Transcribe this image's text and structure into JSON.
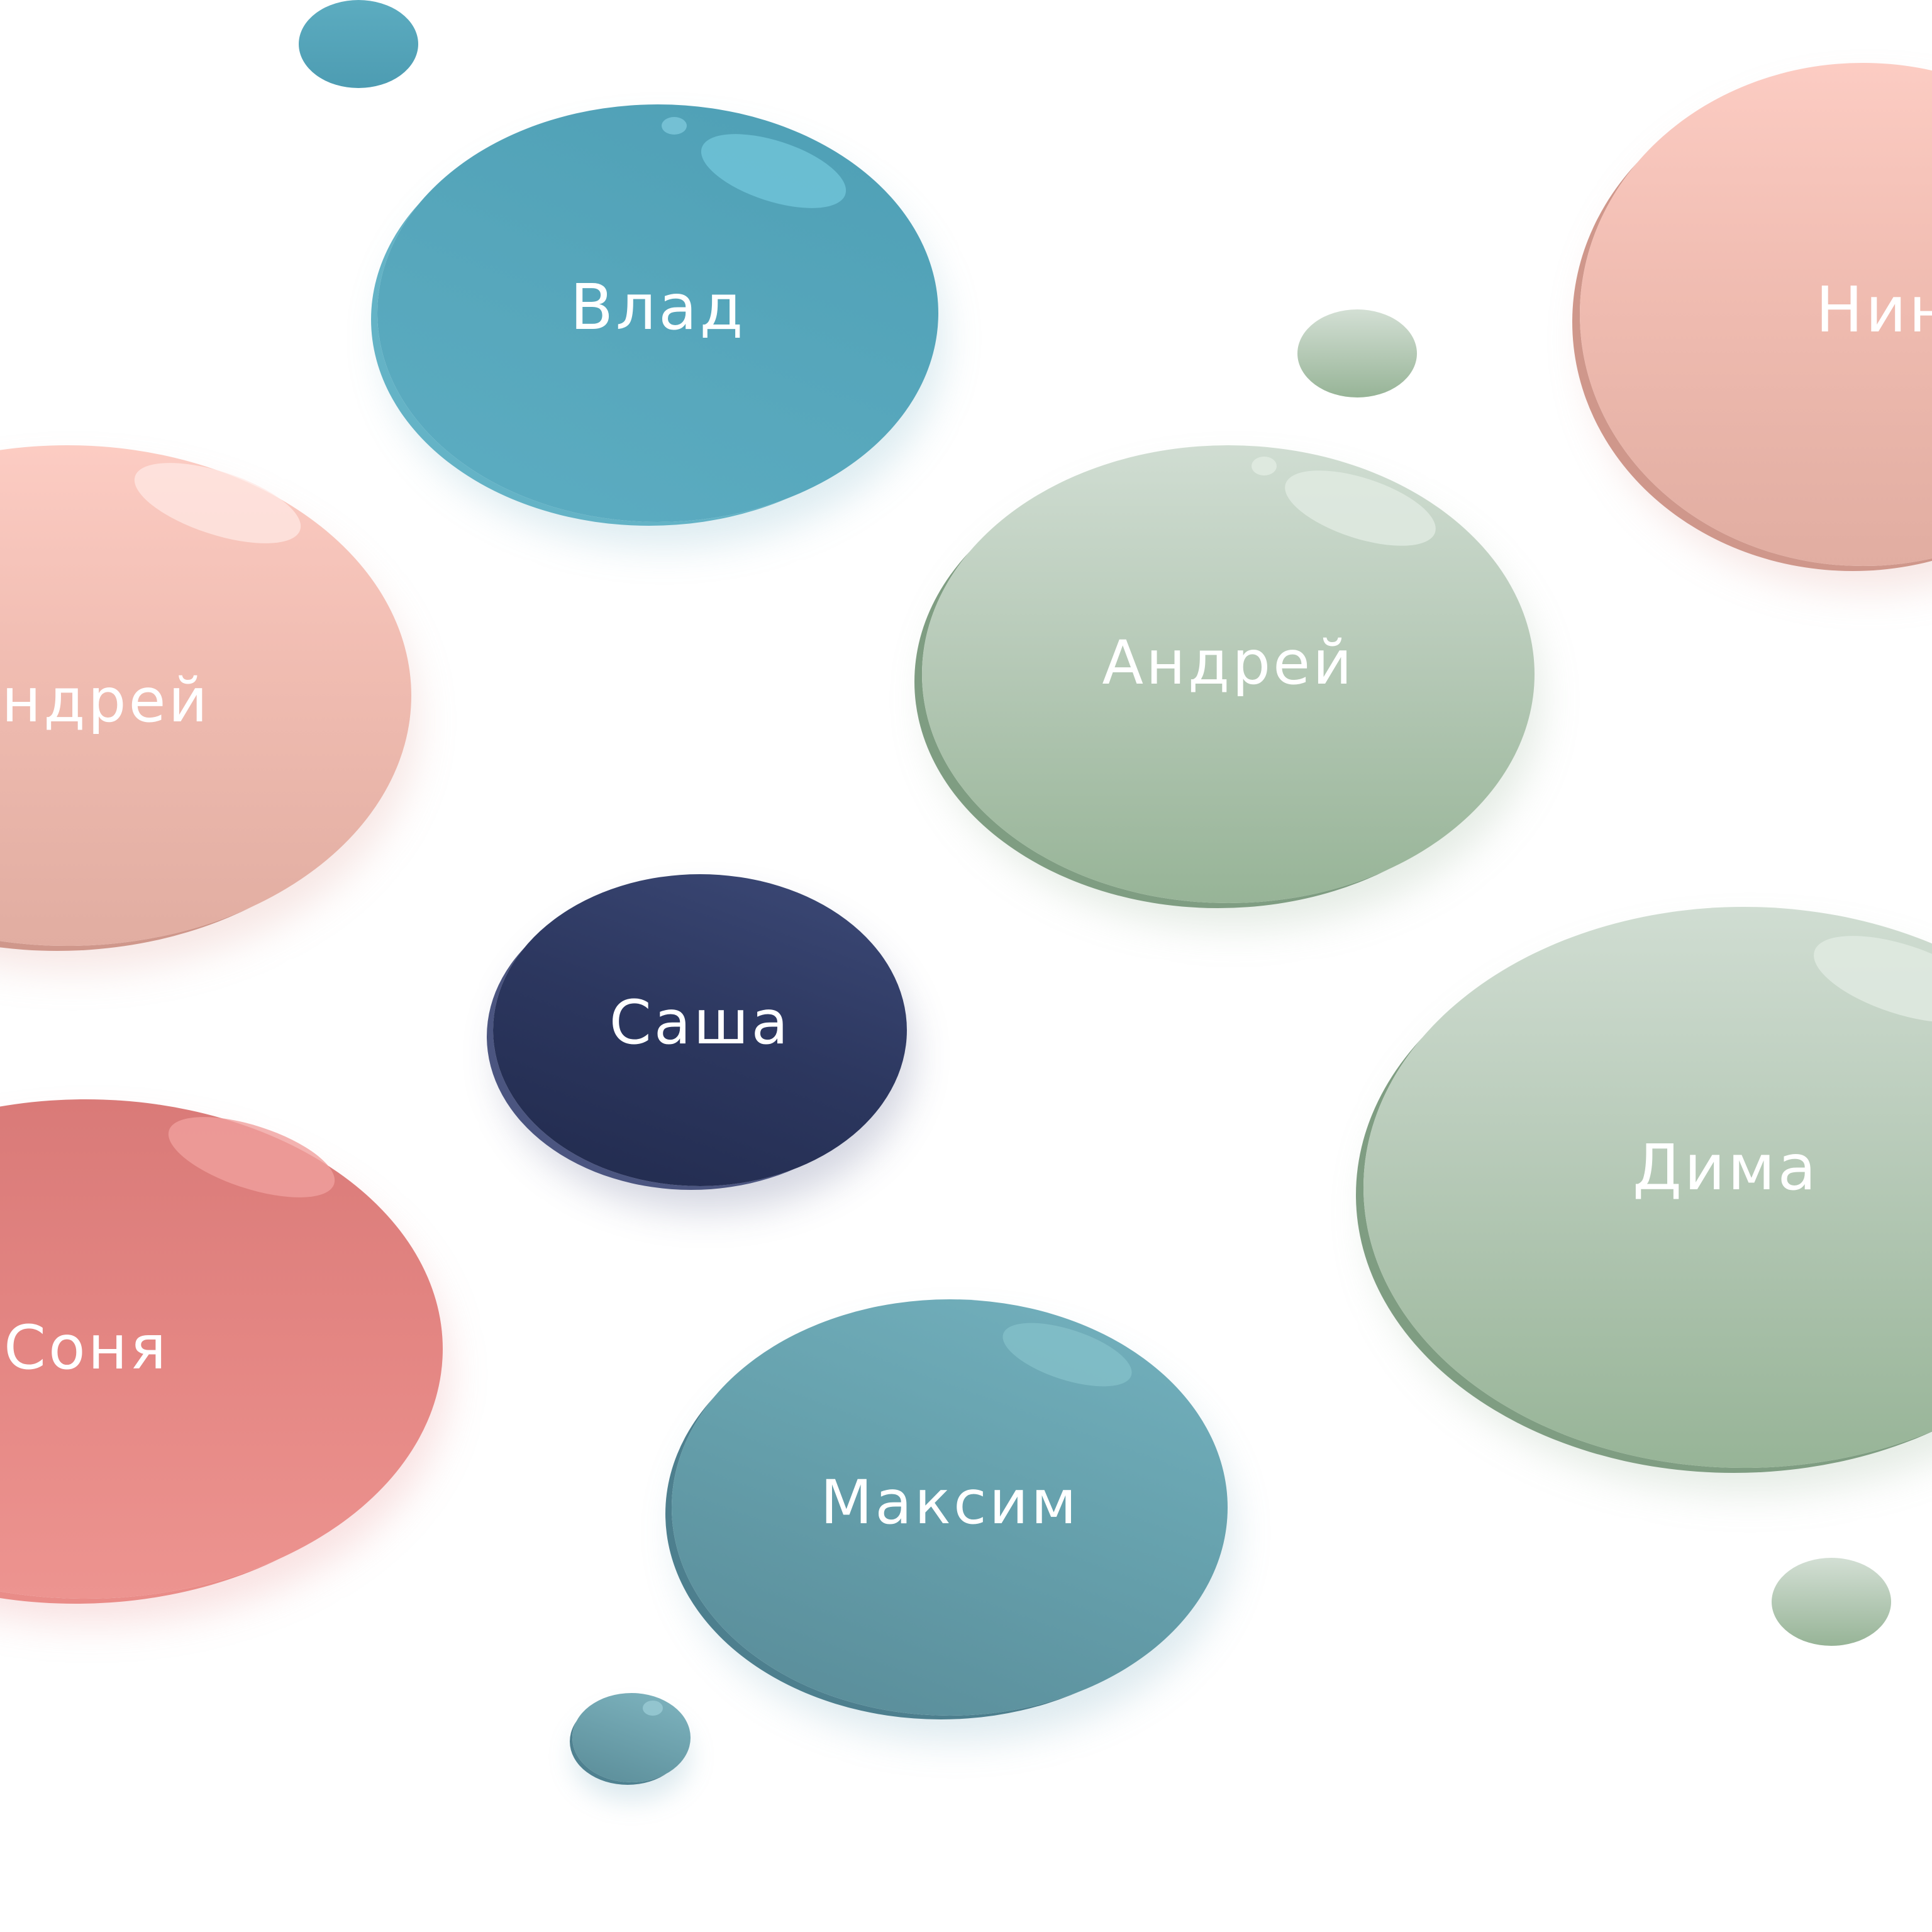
{
  "bubbles": {
    "vlad": {
      "label": "Влад"
    },
    "nina": {
      "label": "Нина"
    },
    "andrey_left": {
      "label": "Андрей"
    },
    "andrey_center": {
      "label": "Андрей"
    },
    "sasha": {
      "label": "Саша"
    },
    "dima": {
      "label": "Дима"
    },
    "sonya": {
      "label": "Соня"
    },
    "maksim": {
      "label": "Максим"
    }
  },
  "colors": {
    "teal": "#57a7bc",
    "pink": "#f0bcb1",
    "sage": "#b7cab8",
    "navy": "#2c375f",
    "coral": "#e48683",
    "steel": "#66a1ad",
    "text": "#ffffff"
  }
}
